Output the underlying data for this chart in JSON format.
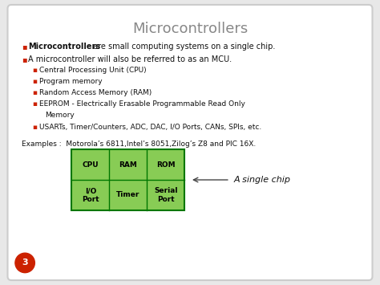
{
  "title": "Microcontrollers",
  "title_fontsize": 13,
  "title_color": "#888888",
  "background_color": "#ffffff",
  "outer_bg": "#e8e8e8",
  "bullet_color": "#cc2200",
  "text_color": "#111111",
  "bullet1_bold": "Microcontrollers",
  "bullet1_rest": " are small computing systems on a single chip.",
  "bullet2": "A microcontroller will also be referred to as an MCU.",
  "sub_bullets": [
    "Central Processing Unit (CPU)",
    "Program memory",
    "Random Access Memory (RAM)",
    "EEPROM - Electrically Erasable Programmable Read Only",
    "Memory",
    "USARTs, Timer/Counters, ADC, DAC, I/O Ports, CANs, SPIs, etc."
  ],
  "sub_bullet_flags": [
    true,
    true,
    true,
    true,
    false,
    true
  ],
  "examples_line": "Examples :  Motorola’s 6811,Intel’s 8051,Zilog’s Z8 and PIC 16X.",
  "table_cells": [
    [
      "CPU",
      "RAM",
      "ROM"
    ],
    [
      "I/O\nPort",
      "Timer",
      "Serial\nPort"
    ]
  ],
  "table_border_color": "#007700",
  "table_fill_color": "#88cc55",
  "table_line_color": "#007700",
  "arrow_label": "A single chip",
  "page_num": "3",
  "page_circle_color": "#cc2200",
  "fs_main": 7.0,
  "fs_sub": 6.5,
  "fs_title": 13
}
